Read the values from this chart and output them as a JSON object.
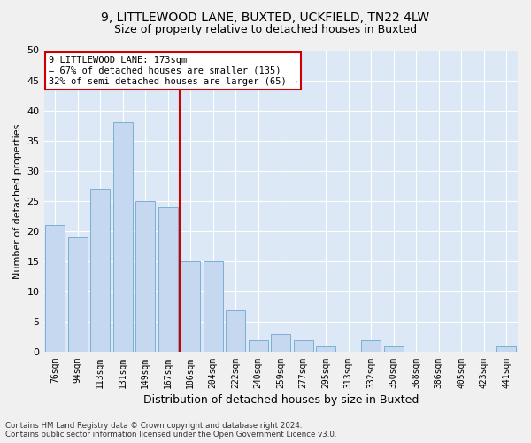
{
  "title1": "9, LITTLEWOOD LANE, BUXTED, UCKFIELD, TN22 4LW",
  "title2": "Size of property relative to detached houses in Buxted",
  "xlabel": "Distribution of detached houses by size in Buxted",
  "ylabel": "Number of detached properties",
  "bins": [
    "76sqm",
    "94sqm",
    "113sqm",
    "131sqm",
    "149sqm",
    "167sqm",
    "186sqm",
    "204sqm",
    "222sqm",
    "240sqm",
    "259sqm",
    "277sqm",
    "295sqm",
    "313sqm",
    "332sqm",
    "350sqm",
    "368sqm",
    "386sqm",
    "405sqm",
    "423sqm",
    "441sqm"
  ],
  "values": [
    21,
    19,
    27,
    38,
    25,
    24,
    15,
    15,
    7,
    2,
    3,
    2,
    1,
    0,
    2,
    1,
    0,
    0,
    0,
    0,
    1
  ],
  "bar_color": "#c5d8f0",
  "bar_edge_color": "#7aafd4",
  "vline_color": "#cc0000",
  "annotation_line1": "9 LITTLEWOOD LANE: 173sqm",
  "annotation_line2": "← 67% of detached houses are smaller (135)",
  "annotation_line3": "32% of semi-detached houses are larger (65) →",
  "annotation_box_color": "#ffffff",
  "annotation_box_edge": "#cc0000",
  "ylim": [
    0,
    50
  ],
  "yticks": [
    0,
    5,
    10,
    15,
    20,
    25,
    30,
    35,
    40,
    45,
    50
  ],
  "footnote": "Contains HM Land Registry data © Crown copyright and database right 2024.\nContains public sector information licensed under the Open Government Licence v3.0.",
  "fig_bg_color": "#f0f0f0",
  "plot_bg_color": "#dce8f5",
  "grid_color": "#ffffff",
  "title1_fontsize": 10,
  "title2_fontsize": 9
}
